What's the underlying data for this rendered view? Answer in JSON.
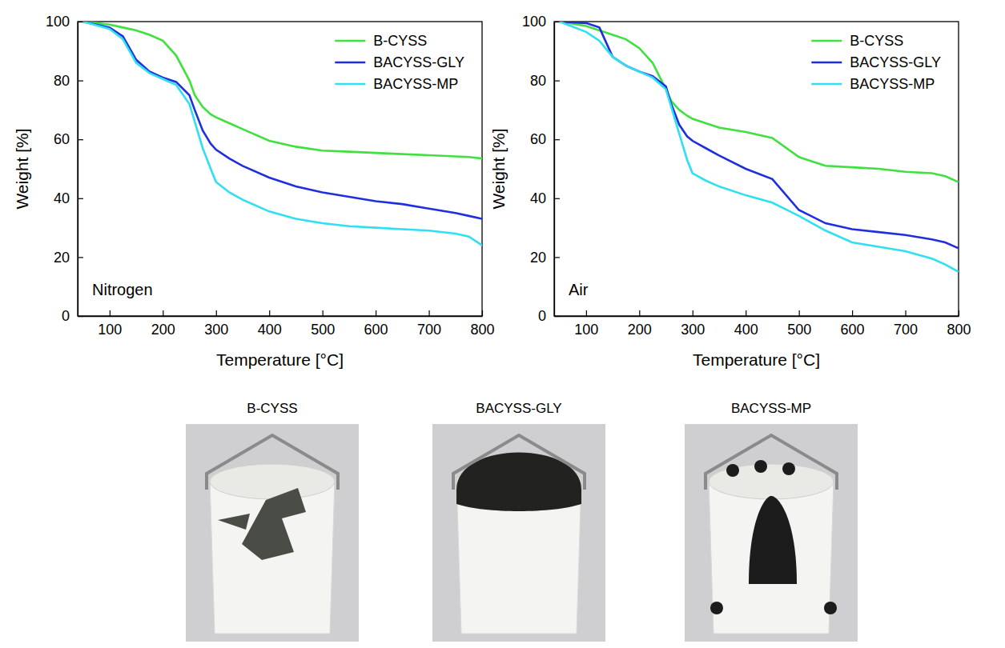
{
  "chart_data": [
    {
      "type": "line",
      "annotation": "Nitrogen",
      "x_label": "Temperature [°C]",
      "y_label": "Weight [%]",
      "xlim": [
        40,
        800
      ],
      "xticks": [
        100,
        200,
        300,
        400,
        500,
        600,
        700,
        800
      ],
      "ylim": [
        0,
        100
      ],
      "yticks": [
        0,
        20,
        40,
        60,
        80,
        100
      ],
      "grid": false,
      "legend": "upper right",
      "x": [
        50,
        100,
        125,
        150,
        175,
        200,
        225,
        250,
        260,
        275,
        290,
        300,
        325,
        350,
        400,
        450,
        500,
        550,
        600,
        650,
        700,
        750,
        775,
        800
      ],
      "series": [
        {
          "name": "B-CYSS",
          "color": "#3fe03f",
          "values": [
            100,
            99,
            98,
            97,
            95.5,
            93.5,
            88.5,
            80,
            75,
            71,
            68.5,
            67.5,
            65.5,
            63.5,
            59.5,
            57.5,
            56.2,
            55.8,
            55.4,
            55,
            54.6,
            54.2,
            54,
            53.5
          ]
        },
        {
          "name": "BACYSS-GLY",
          "color": "#1f2fe0",
          "values": [
            100,
            98,
            95,
            87,
            83,
            81,
            79.5,
            75,
            70,
            63,
            58.5,
            56.5,
            53.5,
            51,
            47,
            44,
            42,
            40.5,
            39,
            38,
            36.5,
            35,
            34,
            33
          ]
        },
        {
          "name": "BACYSS-MP",
          "color": "#2fdff2",
          "values": [
            100,
            97.5,
            94,
            86,
            82.5,
            80.5,
            78.5,
            72,
            66,
            57,
            50,
            45.5,
            42,
            39.5,
            35.5,
            33,
            31.5,
            30.5,
            30,
            29.5,
            29,
            28,
            27,
            24
          ]
        }
      ]
    },
    {
      "type": "line",
      "annotation": "Air",
      "x_label": "Temperature [°C]",
      "y_label": "Weight [%]",
      "xlim": [
        40,
        800
      ],
      "xticks": [
        100,
        200,
        300,
        400,
        500,
        600,
        700,
        800
      ],
      "ylim": [
        0,
        100
      ],
      "yticks": [
        0,
        20,
        40,
        60,
        80,
        100
      ],
      "grid": false,
      "legend": "upper right",
      "x": [
        50,
        100,
        125,
        150,
        175,
        200,
        225,
        250,
        260,
        275,
        290,
        300,
        325,
        350,
        400,
        450,
        500,
        550,
        600,
        650,
        700,
        750,
        775,
        800
      ],
      "series": [
        {
          "name": "B-CYSS",
          "color": "#3fe03f",
          "values": [
            100,
            98.5,
            97,
            95.5,
            94,
            91,
            86,
            77,
            73,
            70,
            68,
            67,
            65.5,
            64,
            62.5,
            60.5,
            54,
            51,
            50.5,
            50,
            49,
            48.5,
            47.5,
            45.5
          ]
        },
        {
          "name": "BACYSS-GLY",
          "color": "#1f2fe0",
          "values": [
            100,
            99.5,
            98,
            88,
            85,
            83,
            81.5,
            78,
            72,
            65,
            61,
            59.5,
            57,
            54.5,
            50,
            46.5,
            36,
            31.5,
            29.5,
            28.5,
            27.5,
            26,
            25,
            23
          ]
        },
        {
          "name": "BACYSS-MP",
          "color": "#2fdff2",
          "values": [
            100,
            96.5,
            93.5,
            88,
            85,
            83,
            81,
            77,
            71,
            62,
            53,
            48.5,
            46,
            44,
            41,
            38.5,
            34,
            29,
            25,
            23.5,
            22,
            19.5,
            17.5,
            15
          ]
        }
      ]
    }
  ],
  "photos": [
    {
      "label": "B-CYSS"
    },
    {
      "label": "BACYSS-GLY"
    },
    {
      "label": "BACYSS-MP"
    }
  ]
}
